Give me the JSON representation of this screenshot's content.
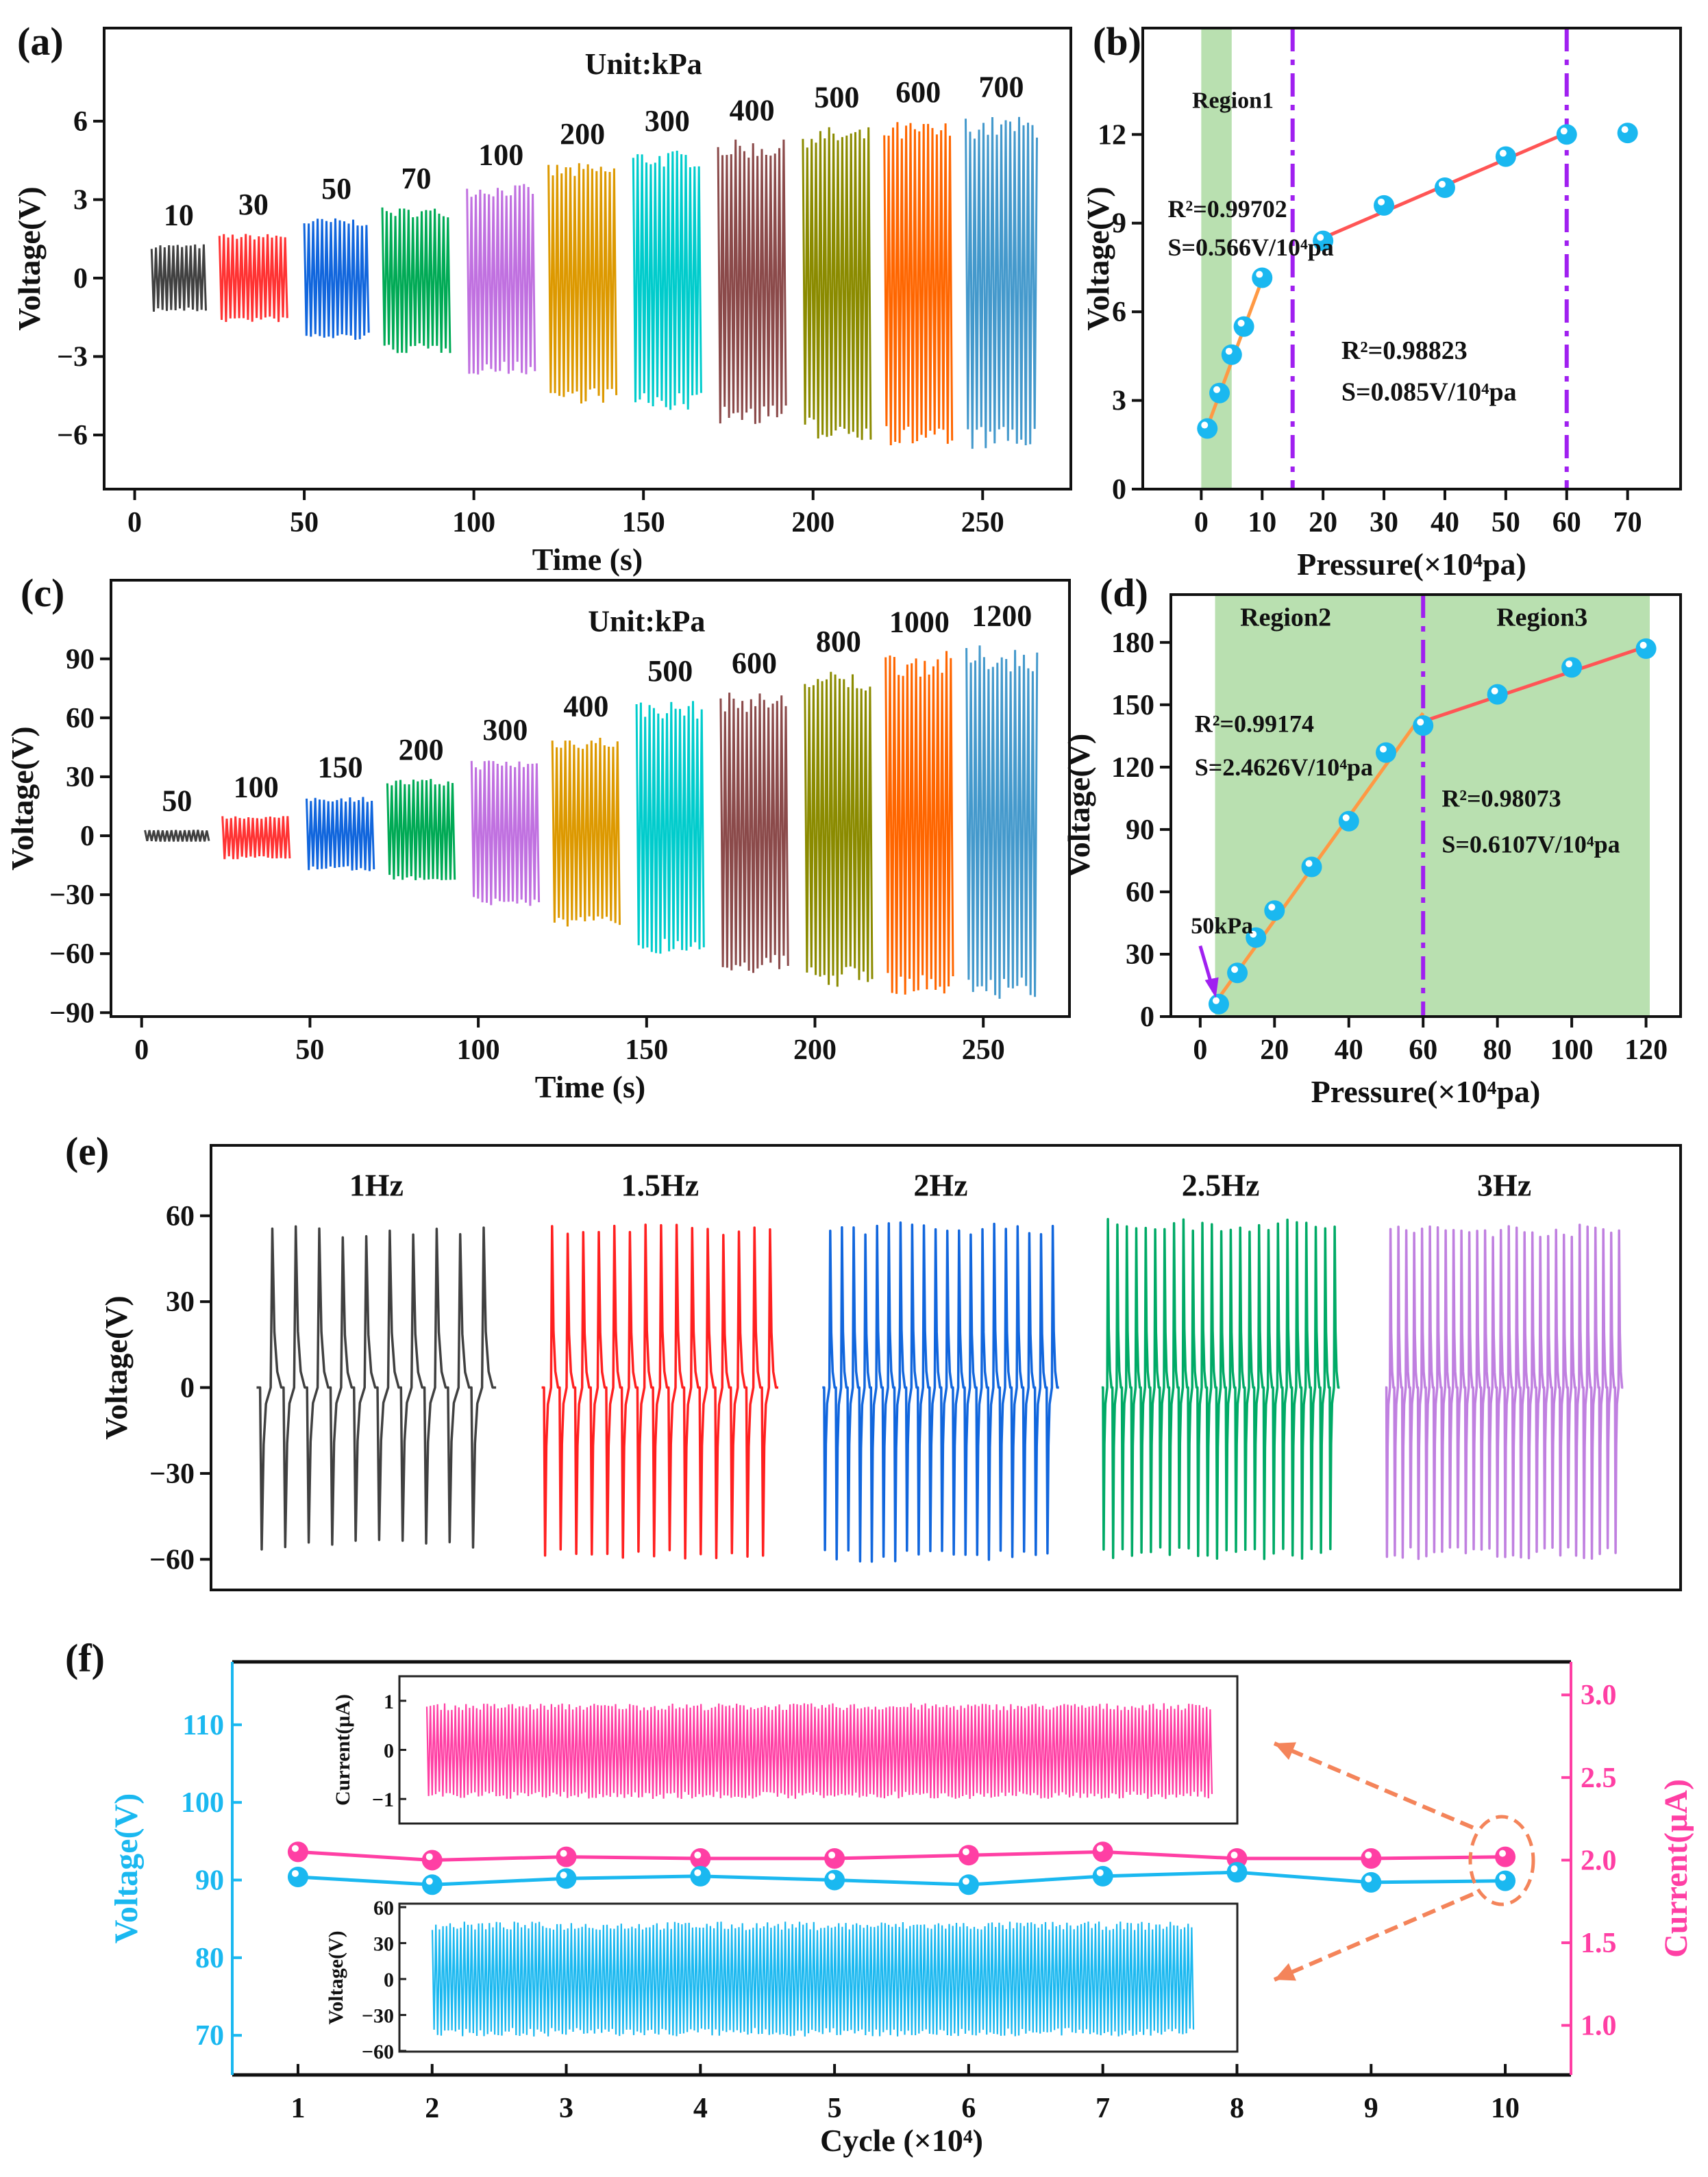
{
  "panel_labels": [
    "(a)",
    "(b)",
    "(c)",
    "(d)",
    "(e)",
    "(f)"
  ],
  "chart_data": [
    {
      "id": "a",
      "type": "line",
      "xlabel": "Time (s)",
      "ylabel": "Voltage(V)",
      "xlim": [
        -9,
        276
      ],
      "ylim": [
        -8.07,
        9.56
      ],
      "xticks": [
        0,
        50,
        100,
        150,
        200,
        250
      ],
      "yticks": [
        -6,
        -3,
        0,
        3,
        6
      ],
      "annotation": "Unit:kPa",
      "blocks": [
        {
          "label": "10",
          "t_start": 5,
          "t_end": 21,
          "vmax": 1.3,
          "vmin": -1.3,
          "color": "#404040"
        },
        {
          "label": "30",
          "t_start": 25,
          "t_end": 45,
          "vmax": 1.7,
          "vmin": -1.7,
          "color": "#ff3333"
        },
        {
          "label": "50",
          "t_start": 50,
          "t_end": 69,
          "vmax": 2.3,
          "vmin": -2.4,
          "color": "#1166dd"
        },
        {
          "label": "70",
          "t_start": 73,
          "t_end": 93,
          "vmax": 2.7,
          "vmin": -2.9,
          "color": "#00aa55"
        },
        {
          "label": "100",
          "t_start": 98,
          "t_end": 118,
          "vmax": 3.6,
          "vmin": -3.7,
          "color": "#c070e0"
        },
        {
          "label": "200",
          "t_start": 122,
          "t_end": 142,
          "vmax": 4.4,
          "vmin": -4.8,
          "color": "#dd9900"
        },
        {
          "label": "300",
          "t_start": 147,
          "t_end": 167,
          "vmax": 4.9,
          "vmin": -5.1,
          "color": "#00cccc"
        },
        {
          "label": "400",
          "t_start": 172,
          "t_end": 192,
          "vmax": 5.3,
          "vmin": -5.6,
          "color": "#8b4a4a"
        },
        {
          "label": "500",
          "t_start": 197,
          "t_end": 217,
          "vmax": 5.8,
          "vmin": -6.2,
          "color": "#8b8b00"
        },
        {
          "label": "600",
          "t_start": 221,
          "t_end": 241,
          "vmax": 6.0,
          "vmin": -6.5,
          "color": "#ff6600"
        },
        {
          "label": "700",
          "t_start": 245,
          "t_end": 266,
          "vmax": 6.2,
          "vmin": -6.6,
          "color": "#4499cc"
        }
      ]
    },
    {
      "id": "b",
      "type": "scatter",
      "xlabel": "Pressure(×10⁴pa)",
      "ylabel": "Voltage(V)",
      "xlim": [
        -9.6,
        78.7
      ],
      "ylim": [
        0,
        15.6
      ],
      "xticks": [
        0,
        10,
        20,
        30,
        40,
        50,
        60,
        70
      ],
      "yticks": [
        0,
        3,
        6,
        9,
        12
      ],
      "region": {
        "label": "Region1",
        "x": [
          0,
          5
        ],
        "color": "#b9e0b0"
      },
      "vlines": [
        15,
        60
      ],
      "vline_color": "#a020f0",
      "points": {
        "x": [
          1,
          3,
          5,
          7,
          10,
          20,
          30,
          40,
          50,
          60,
          70
        ],
        "y": [
          2.05,
          3.25,
          4.55,
          5.5,
          7.15,
          8.4,
          9.6,
          10.2,
          11.25,
          12.0,
          12.05
        ],
        "color": "#1ab8f0"
      },
      "fits": [
        {
          "x": [
            1,
            10
          ],
          "y": [
            2.1,
            7.1
          ],
          "color": "#ff9944",
          "r2": "R²=0.99702",
          "s": "S=0.566V/10⁴pa"
        },
        {
          "x": [
            20,
            60
          ],
          "y": [
            8.5,
            12.05
          ],
          "color": "#ff5555",
          "r2": "R²=0.98823",
          "s": "S=0.085V/10⁴pa"
        }
      ]
    },
    {
      "id": "c",
      "type": "line",
      "xlabel": "Time (s)",
      "ylabel": "Voltage(V)",
      "xlim": [
        -9.1,
        275.6
      ],
      "ylim": [
        -92,
        130
      ],
      "xticks": [
        0,
        50,
        100,
        150,
        200,
        250
      ],
      "yticks": [
        -90,
        -60,
        -30,
        0,
        30,
        60,
        90
      ],
      "annotation": "Unit:kPa",
      "blocks": [
        {
          "label": "50",
          "t_start": 1,
          "t_end": 20,
          "vmax": 3,
          "vmin": -3,
          "color": "#404040"
        },
        {
          "label": "100",
          "t_start": 24,
          "t_end": 44,
          "vmax": 10,
          "vmin": -12,
          "color": "#ff3333"
        },
        {
          "label": "150",
          "t_start": 49,
          "t_end": 69,
          "vmax": 20,
          "vmin": -18,
          "color": "#1166dd"
        },
        {
          "label": "200",
          "t_start": 73,
          "t_end": 93,
          "vmax": 29,
          "vmin": -23,
          "color": "#00aa55"
        },
        {
          "label": "300",
          "t_start": 98,
          "t_end": 118,
          "vmax": 39,
          "vmin": -36,
          "color": "#c070e0"
        },
        {
          "label": "400",
          "t_start": 122,
          "t_end": 142,
          "vmax": 51,
          "vmin": -47,
          "color": "#dd9900"
        },
        {
          "label": "500",
          "t_start": 147,
          "t_end": 167,
          "vmax": 69,
          "vmin": -60,
          "color": "#00cccc"
        },
        {
          "label": "600",
          "t_start": 172,
          "t_end": 192,
          "vmax": 73,
          "vmin": -70,
          "color": "#8b4a4a"
        },
        {
          "label": "800",
          "t_start": 197,
          "t_end": 217,
          "vmax": 84,
          "vmin": -77,
          "color": "#8b8b00"
        },
        {
          "label": "1000",
          "t_start": 221,
          "t_end": 241,
          "vmax": 94,
          "vmin": -81,
          "color": "#ff6600"
        },
        {
          "label": "1200",
          "t_start": 245,
          "t_end": 266,
          "vmax": 97,
          "vmin": -83,
          "color": "#4499cc"
        }
      ]
    },
    {
      "id": "d",
      "type": "scatter",
      "xlabel": "Pressure(×10⁴pa)",
      "ylabel": "Voltage(V)",
      "xlim": [
        -7.9,
        129.3
      ],
      "ylim": [
        0,
        203
      ],
      "xticks": [
        0,
        20,
        40,
        60,
        80,
        100,
        120
      ],
      "yticks": [
        0,
        30,
        60,
        90,
        120,
        150,
        180
      ],
      "region": {
        "x": [
          4,
          121
        ],
        "color": "#b9e0b0"
      },
      "region_labels": [
        "Region2",
        "Region3"
      ],
      "vlines": [
        60
      ],
      "vline_color": "#a020f0",
      "arrow_label": "50kPa",
      "points": {
        "x": [
          5,
          10,
          15,
          20,
          30,
          40,
          50,
          60,
          80,
          100,
          120
        ],
        "y": [
          6,
          21,
          38,
          51,
          72,
          94,
          127,
          140,
          155,
          168,
          177
        ],
        "color": "#1ab8f0"
      },
      "fits": [
        {
          "x": [
            5,
            60
          ],
          "y": [
            9,
            146
          ],
          "color": "#ff9944",
          "r2": "R²=0.99174",
          "s": "S=2.4626V/10⁴pa"
        },
        {
          "x": [
            60,
            120
          ],
          "y": [
            142,
            178
          ],
          "color": "#ff5555",
          "r2": "R²=0.98073",
          "s": "S=0.6107V/10⁴pa"
        }
      ]
    },
    {
      "id": "e",
      "type": "line",
      "ylabel": "Voltage(V)",
      "ylim": [
        -70.7,
        84.6
      ],
      "yticks": [
        -60,
        -30,
        0,
        30,
        60
      ],
      "series": [
        {
          "name": "1Hz",
          "cycles": 10,
          "peak": 57,
          "trough": -57,
          "color": "#404040"
        },
        {
          "name": "1.5Hz",
          "cycles": 15,
          "peak": 57,
          "trough": -60,
          "color": "#ff2020"
        },
        {
          "name": "2Hz",
          "cycles": 20,
          "peak": 58,
          "trough": -61,
          "color": "#1166dd"
        },
        {
          "name": "2.5Hz",
          "cycles": 25,
          "peak": 59,
          "trough": -60,
          "color": "#00aa66"
        },
        {
          "name": "3Hz",
          "cycles": 30,
          "peak": 57,
          "trough": -60,
          "color": "#c080e0"
        }
      ]
    },
    {
      "id": "f",
      "type": "line",
      "xlabel": "Cycle (×10⁴)",
      "ylabel_left": "Voltage(V)",
      "ylabel_right": "Current(μA)",
      "xlim": [
        0.51,
        10.49
      ],
      "ylim_left": [
        64.9,
        118.1
      ],
      "ylim_right": [
        0.7,
        3.2
      ],
      "xticks": [
        1,
        2,
        3,
        4,
        5,
        6,
        7,
        8,
        9,
        10
      ],
      "yticks_left": [
        70,
        80,
        90,
        100,
        110
      ],
      "yticks_right": [
        "1.0",
        "1.5",
        "2.0",
        "2.5",
        "3.0"
      ],
      "left_color": "#1ab8f0",
      "right_color": "#ff3fa4",
      "arrow_color": "#f4845a",
      "x": [
        1,
        2,
        3,
        4,
        5,
        6,
        7,
        8,
        9,
        10
      ],
      "voltage": [
        90.4,
        89.4,
        90.2,
        90.5,
        90.0,
        89.4,
        90.5,
        91.0,
        89.7,
        89.9
      ],
      "current": [
        2.05,
        2.0,
        2.02,
        2.01,
        2.01,
        2.03,
        2.05,
        2.01,
        2.01,
        2.02
      ],
      "inset_current": {
        "ylabel": "Current(μA)",
        "ylim": [
          -1.5,
          1.5
        ],
        "yticks": [
          -1,
          0,
          1
        ],
        "amplitude": [
          -1.0,
          0.95
        ]
      },
      "inset_voltage": {
        "ylabel": "Voltage(V)",
        "ylim": [
          -60.6,
          62.9
        ],
        "yticks": [
          -60,
          -30,
          0,
          30,
          60
        ],
        "amplitude": [
          -48,
          48
        ]
      }
    }
  ]
}
